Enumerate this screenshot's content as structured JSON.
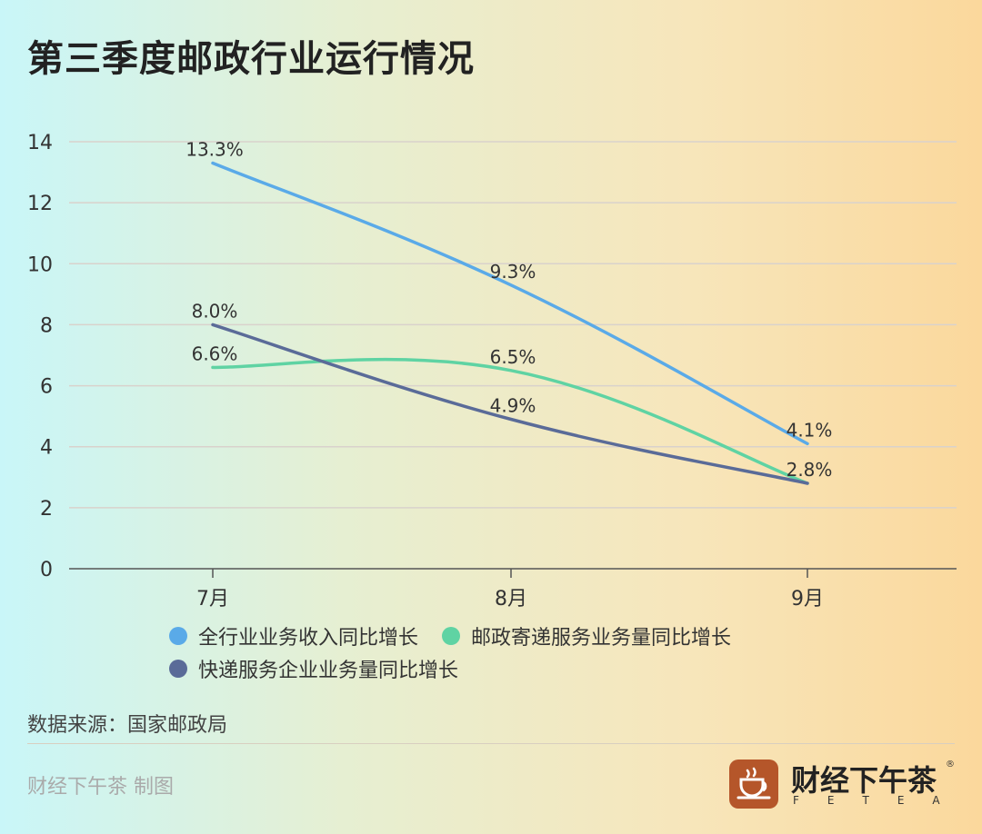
{
  "title": "第三季度邮政行业运行情况",
  "chart_data": {
    "type": "line",
    "title": "第三季度邮政行业运行情况",
    "categories": [
      "7月",
      "8月",
      "9月"
    ],
    "ylim": [
      0,
      14
    ],
    "yticks": [
      0,
      2,
      4,
      6,
      8,
      10,
      12,
      14
    ],
    "grid": true,
    "legend_position": "bottom",
    "series": [
      {
        "name": "全行业业务收入同比增长",
        "values": [
          13.3,
          9.3,
          4.1
        ],
        "labels": [
          "13.3%",
          "9.3%",
          "4.1%"
        ],
        "color": "#5aaae8"
      },
      {
        "name": "邮政寄递服务业务量同比增长",
        "values": [
          6.6,
          6.5,
          2.8
        ],
        "labels": [
          "6.6%",
          "6.5%",
          "2.8%"
        ],
        "color": "#5fd3a3"
      },
      {
        "name": "快递服务企业业务量同比增长",
        "values": [
          8.0,
          4.9,
          2.8
        ],
        "labels": [
          "8.0%",
          "4.9%",
          ""
        ],
        "color": "#5a6b98"
      }
    ]
  },
  "source": "数据来源：国家邮政局",
  "credit": "财经下午茶 制图",
  "brand": {
    "name": "财经下午茶",
    "sub": "FETEA",
    "mark": "®",
    "logo_icon": "coffee-cup-icon"
  }
}
